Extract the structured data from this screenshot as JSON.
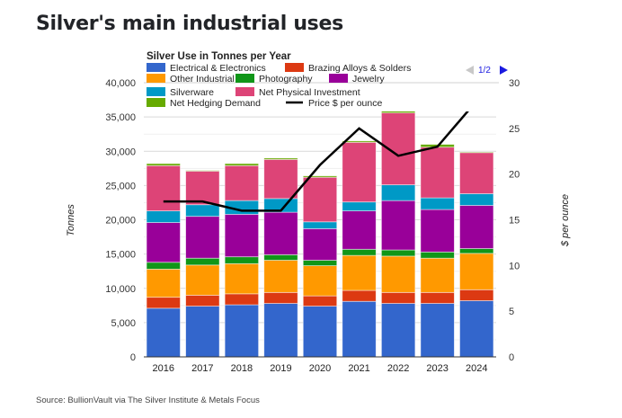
{
  "page": {
    "title": "Silver's main industrial uses",
    "source": "Source: BullionVault via The Silver Institute & Metals Focus"
  },
  "legend_pager": {
    "label": "1/2",
    "prev_icon": "triangle-left-icon",
    "next_icon": "triangle-right-icon"
  },
  "chart_data": {
    "type": "bar",
    "stacked": true,
    "title": "Silver Use in Tonnes per Year",
    "categories": [
      "2016",
      "2017",
      "2018",
      "2019",
      "2020",
      "2021",
      "2022",
      "2023",
      "2024"
    ],
    "xlabel": "",
    "ylabel": "Tonnes",
    "y2label": "$ per ounce",
    "ylim": [
      0,
      40000
    ],
    "y2lim": [
      0,
      30
    ],
    "yticks": [
      "0",
      "5,000",
      "10,000",
      "15,000",
      "20,000",
      "25,000",
      "30,000",
      "35,000",
      "40,000"
    ],
    "y2ticks": [
      "0",
      "5",
      "10",
      "15",
      "20",
      "25",
      "30"
    ],
    "grid": true,
    "legend_position": "top",
    "series": [
      {
        "name": "Electrical & Electronics",
        "color": "#3366cc",
        "values": [
          7100,
          7400,
          7600,
          7800,
          7400,
          8100,
          7800,
          7800,
          8200
        ]
      },
      {
        "name": "Brazing Alloys & Solders",
        "color": "#dc3912",
        "values": [
          1600,
          1600,
          1600,
          1600,
          1500,
          1600,
          1600,
          1600,
          1600
        ]
      },
      {
        "name": "Other Industrial",
        "color": "#ff9900",
        "values": [
          4100,
          4400,
          4400,
          4700,
          4400,
          5100,
          5300,
          5000,
          5300
        ]
      },
      {
        "name": "Photography",
        "color": "#109618",
        "values": [
          1000,
          1000,
          1000,
          800,
          800,
          900,
          900,
          900,
          700
        ]
      },
      {
        "name": "Jewelry",
        "color": "#990099",
        "values": [
          5800,
          6100,
          6200,
          6200,
          4600,
          5600,
          7200,
          6200,
          6300
        ]
      },
      {
        "name": "Silverware",
        "color": "#0099c6",
        "values": [
          1700,
          1700,
          2000,
          2000,
          1000,
          1300,
          2300,
          1700,
          1700
        ]
      },
      {
        "name": "Net Physical Investment",
        "color": "#dd4477",
        "values": [
          6600,
          4900,
          5100,
          5700,
          6500,
          8700,
          10500,
          7400,
          6000
        ]
      },
      {
        "name": "Net Hedging Demand",
        "color": "#66aa00",
        "values": [
          300,
          100,
          300,
          200,
          200,
          200,
          400,
          400,
          100
        ]
      }
    ],
    "line_series": [
      {
        "name": "Price $ per ounce",
        "color": "#000000",
        "axis": "right",
        "values": [
          17,
          17,
          16,
          16,
          21,
          25,
          22,
          23,
          28
        ]
      }
    ]
  }
}
